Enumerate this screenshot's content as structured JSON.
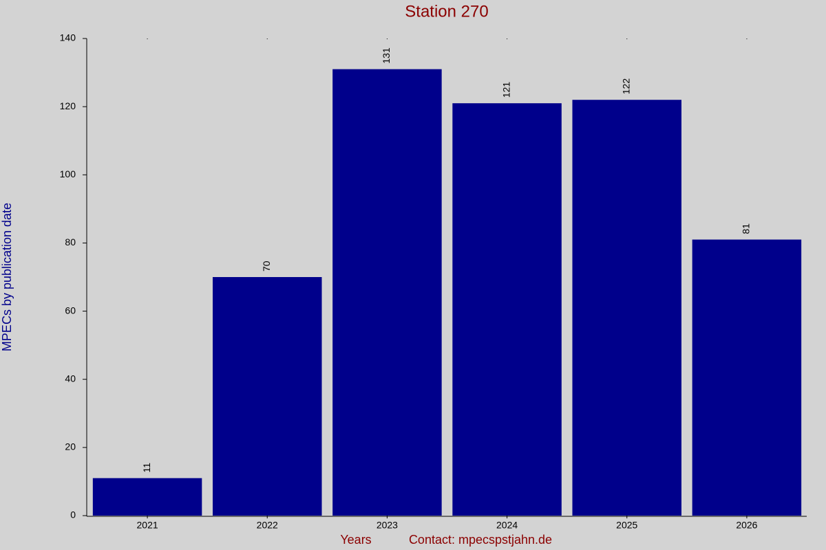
{
  "chart_data": {
    "type": "bar",
    "title": "Station 270",
    "ylabel": "MPECs by publication date",
    "xlabel": "Years",
    "annotation": "Contact: mpecspstjahn.de",
    "categories": [
      "2021",
      "2022",
      "2023",
      "2024",
      "2025",
      "2026"
    ],
    "values": [
      11,
      70,
      131,
      121,
      122,
      81
    ],
    "color": "#00008b",
    "ylim": [
      0,
      140
    ],
    "yticks": [
      0,
      20,
      40,
      60,
      80,
      100,
      120,
      140
    ],
    "grid": false
  }
}
